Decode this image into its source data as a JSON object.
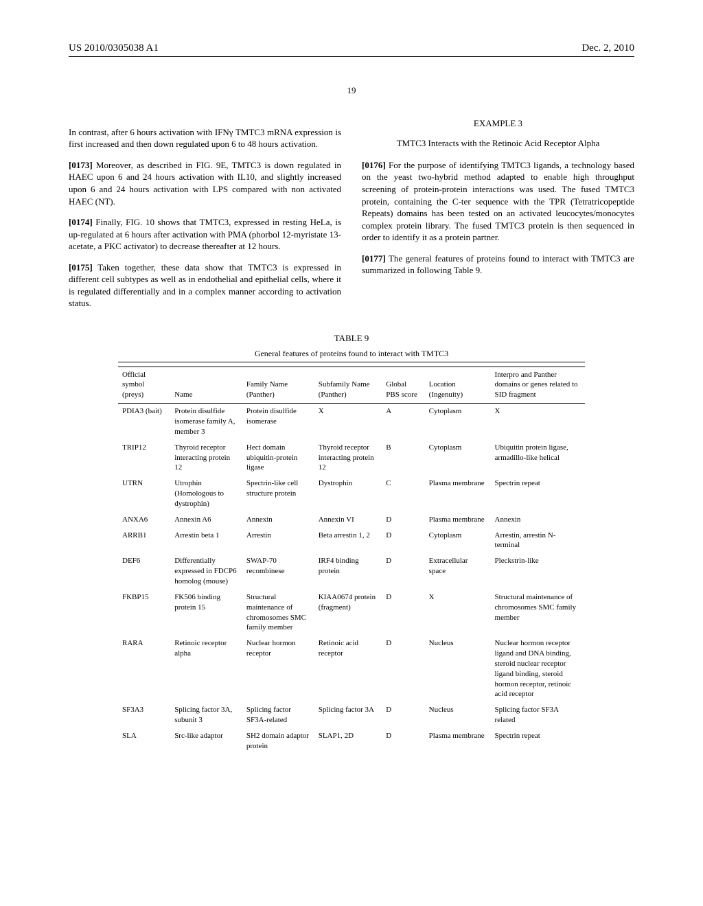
{
  "header": {
    "left": "US 2010/0305038 A1",
    "right": "Dec. 2, 2010"
  },
  "page_number": "19",
  "left_col": {
    "p1": "In contrast, after 6 hours activation with IFNγ TMTC3 mRNA expression is first increased and then down regulated upon 6 to 48 hours activation.",
    "p2_num": "[0173]",
    "p2": " Moreover, as described in FIG. 9E, TMTC3 is down regulated in HAEC upon 6 and 24 hours activation with IL10, and slightly increased upon 6 and 24 hours activation with LPS compared with non activated HAEC (NT).",
    "p3_num": "[0174]",
    "p3": " Finally, FIG. 10 shows that TMTC3, expressed in resting HeLa, is up-regulated at 6 hours after activation with PMA (phorbol 12-myristate 13-acetate, a PKC activator) to decrease thereafter at 12 hours.",
    "p4_num": "[0175]",
    "p4": " Taken together, these data show that TMTC3 is expressed in different cell subtypes as well as in endothelial and epithelial cells, where it is regulated differentially and in a complex manner according to activation status."
  },
  "right_col": {
    "example_label": "EXAMPLE 3",
    "example_title": "TMTC3 Interacts with the Retinoic Acid Receptor Alpha",
    "p1_num": "[0176]",
    "p1": " For the purpose of identifying TMTC3 ligands, a technology based on the yeast two-hybrid method adapted to enable high throughput screening of protein-protein interactions was used. The fused TMTC3 protein, containing the C-ter sequence with the TPR (Tetratricopeptide Repeats) domains has been tested on an activated leucocytes/monocytes complex protein library. The fused TMTC3 protein is then sequenced in order to identify it as a protein partner.",
    "p2_num": "[0177]",
    "p2": " The general features of proteins found to interact with TMTC3 are summarized in following Table 9."
  },
  "table": {
    "label": "TABLE 9",
    "caption": "General features of proteins found to interact with TMTC3",
    "columns": [
      "Official symbol (preys)",
      "Name",
      "Family Name (Panther)",
      "Subfamily Name (Panther)",
      "Global PBS score",
      "Location (Ingenuity)",
      "Interpro and Panther domains or genes related to SID fragment"
    ],
    "rows": [
      [
        "PDIA3 (bait)",
        "Protein disulfide isomerase family A, member 3",
        "Protein disulfide isomerase",
        "X",
        "A",
        "Cytoplasm",
        "X"
      ],
      [
        "TRIP12",
        "Thyroid receptor interacting protein 12",
        "Hect domain ubiquitin-protein ligase",
        "Thyroid receptor interacting protein 12",
        "B",
        "Cytoplasm",
        "Ubiquitin protein ligase, armadillo-like helical"
      ],
      [
        "UTRN",
        "Utrophin (Homologous to dystrophin)",
        "Spectrin-like cell structure protein",
        "Dystrophin",
        "C",
        "Plasma membrane",
        "Spectrin repeat"
      ],
      [
        "ANXA6",
        "Annexin A6",
        "Annexin",
        "Annexin VI",
        "D",
        "Plasma membrane",
        "Annexin"
      ],
      [
        "ARRB1",
        "Arrestin beta 1",
        "Arrestin",
        "Beta arrestin 1, 2",
        "D",
        "Cytoplasm",
        "Arrestin, arrestin N-terminal"
      ],
      [
        "DEF6",
        "Differentially expressed in FDCP6 homolog (mouse)",
        "SWAP-70 recombinese",
        "IRF4 binding protein",
        "D",
        "Extracellular space",
        "Pleckstrin-like"
      ],
      [
        "FKBP15",
        "FK506 binding protein 15",
        "Structural maintenance of chromosomes SMC family member",
        "KIAA0674 protein (fragment)",
        "D",
        "X",
        "Structural maintenance of chromosomes SMC family member"
      ],
      [
        "RARA",
        "Retinoic receptor alpha",
        "Nuclear hormon receptor",
        "Retinoic acid receptor",
        "D",
        "Nucleus",
        "Nuclear hormon receptor ligand and DNA binding, steroid nuclear receptor ligand binding, steroid hormon receptor, retinoic acid receptor"
      ],
      [
        "SF3A3",
        "Splicing factor 3A, subunit 3",
        "Splicing factor SF3A-related",
        "Splicing factor 3A",
        "D",
        "Nucleus",
        "Splicing factor SF3A related"
      ],
      [
        "SLA",
        "Src-like adaptor",
        "SH2 domain adaptor protein",
        "SLAP1, 2D",
        "D",
        "Plasma membrane",
        "Spectrin repeat"
      ]
    ],
    "col_widths": [
      "70px",
      "100px",
      "100px",
      "95px",
      "55px",
      "90px",
      "140px"
    ]
  }
}
